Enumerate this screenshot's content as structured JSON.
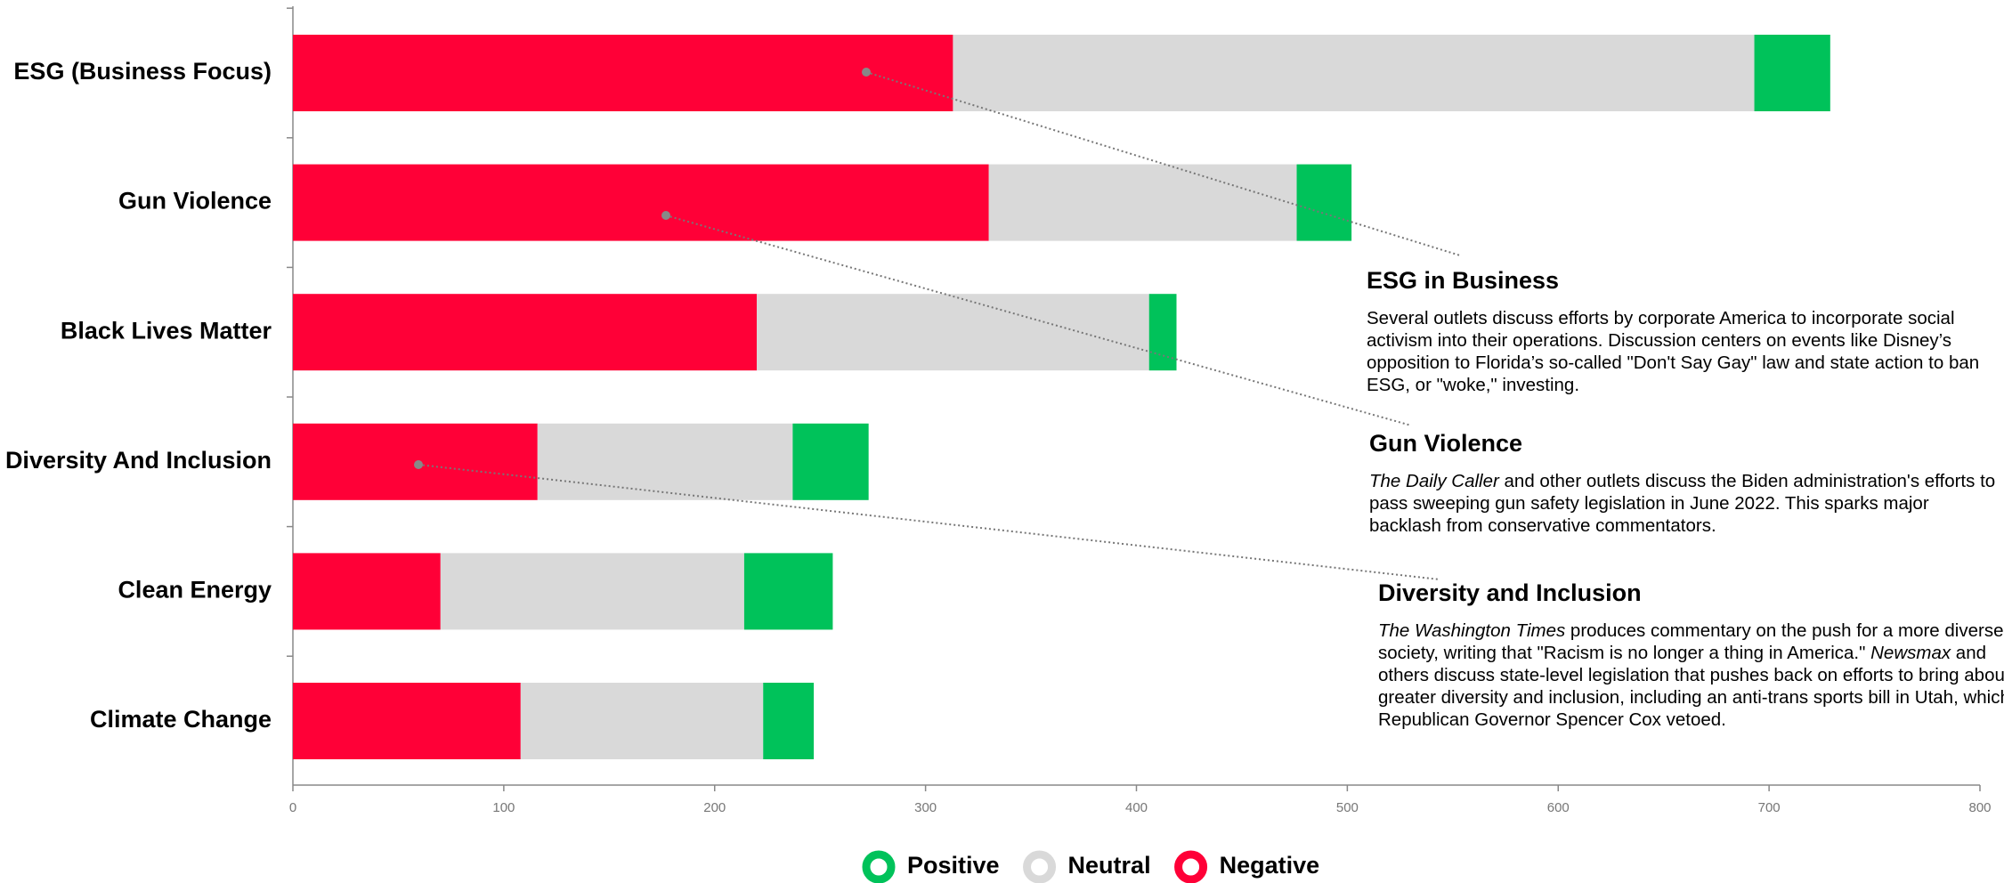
{
  "chart_data": {
    "type": "stacked_bar_horizontal",
    "categories": [
      "ESG (Business Focus)",
      "Gun Violence",
      "Black Lives Matter",
      "Diversity And Inclusion",
      "Clean Energy",
      "Climate Change"
    ],
    "series": [
      {
        "name": "Positive",
        "color": "#00c25a",
        "values": [
          36,
          26,
          13,
          36,
          42,
          24
        ]
      },
      {
        "name": "Neutral",
        "color": "#d9d9d9",
        "values": [
          380,
          146,
          186,
          121,
          144,
          115
        ]
      },
      {
        "name": "Negative",
        "color": "#ff0037",
        "values": [
          313,
          330,
          220,
          116,
          70,
          108
        ]
      }
    ],
    "xlim": [
      0,
      800
    ],
    "xticks": [
      0,
      100,
      200,
      300,
      400,
      500,
      600,
      700,
      800
    ],
    "legend": "bottom",
    "annotations": [
      {
        "title": "ESG in Business",
        "body": [
          {
            "text": "Several outlets discuss efforts by corporate America to incorporate social activism into their operations. Discussion centers on events like Disney’s opposition to Florida’s so-called \"Don't Say Gay\" law and state action to ban ESG, or \"woke,\" investing.",
            "italic": false
          }
        ]
      },
      {
        "title": "Gun Violence",
        "body": [
          {
            "text": "The Daily Caller",
            "italic": true
          },
          {
            "text": " and other outlets discuss the Biden administration's efforts to pass sweeping gun safety legislation in June 2022. This sparks major backlash from conservative commentators.",
            "italic": false
          }
        ]
      },
      {
        "title": "Diversity and Inclusion",
        "body": [
          {
            "text": "The Washington Times",
            "italic": true
          },
          {
            "text": " produces commentary on the push for a more diverse society, writing that \"Racism is no longer a thing in America.\" ",
            "italic": false
          },
          {
            "text": "Newsmax",
            "italic": true
          },
          {
            "text": " and others discuss state-level legislation that pushes back on efforts to bring about greater diversity and inclusion, including an anti-trans sports bill in Utah, which Republican Governor Spencer Cox vetoed.",
            "italic": false
          }
        ]
      }
    ]
  }
}
